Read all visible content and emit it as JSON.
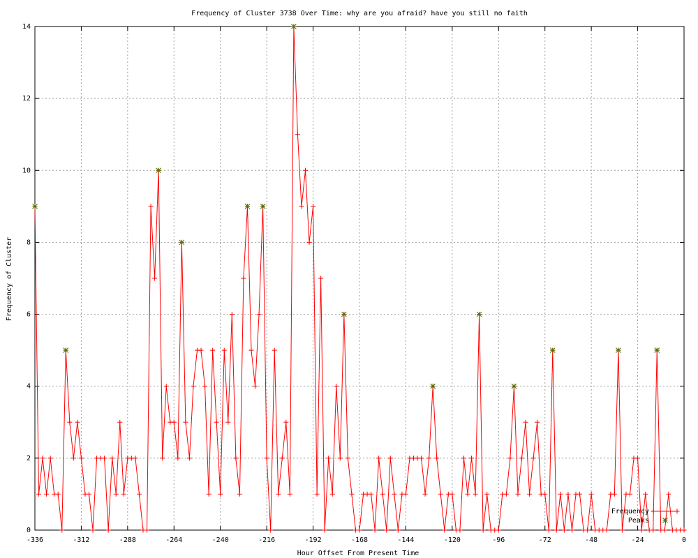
{
  "chart_data": {
    "type": "line",
    "title": "Frequency of Cluster 3738 Over Time: why are you afraid? have you still no faith",
    "x_label": "Hour Offset From Present Time",
    "y_label": "Frequency of Cluster",
    "x": [
      -336,
      -334,
      -332,
      -330,
      -328,
      -326,
      -324,
      -322,
      -320,
      -318,
      -316,
      -314,
      -312,
      -310,
      -308,
      -306,
      -304,
      -302,
      -300,
      -298,
      -296,
      -294,
      -292,
      -290,
      -288,
      -286,
      -284,
      -282,
      -280,
      -278,
      -276,
      -274,
      -272,
      -270,
      -268,
      -266,
      -264,
      -262,
      -260,
      -258,
      -256,
      -254,
      -252,
      -250,
      -248,
      -246,
      -244,
      -242,
      -240,
      -238,
      -236,
      -234,
      -232,
      -230,
      -228,
      -226,
      -224,
      -222,
      -220,
      -218,
      -216,
      -214,
      -212,
      -210,
      -208,
      -206,
      -204,
      -202,
      -200,
      -198,
      -196,
      -194,
      -192,
      -190,
      -188,
      -186,
      -184,
      -182,
      -180,
      -178,
      -176,
      -174,
      -172,
      -170,
      -168,
      -166,
      -164,
      -162,
      -160,
      -158,
      -156,
      -154,
      -152,
      -150,
      -148,
      -146,
      -144,
      -142,
      -140,
      -138,
      -136,
      -134,
      -132,
      -130,
      -128,
      -126,
      -124,
      -122,
      -120,
      -118,
      -116,
      -114,
      -112,
      -110,
      -108,
      -106,
      -104,
      -102,
      -100,
      -98,
      -96,
      -94,
      -92,
      -90,
      -88,
      -86,
      -84,
      -82,
      -80,
      -78,
      -76,
      -74,
      -72,
      -70,
      -68,
      -66,
      -64,
      -62,
      -60,
      -58,
      -56,
      -54,
      -52,
      -50,
      -48,
      -46,
      -44,
      -42,
      -40,
      -38,
      -36,
      -34,
      -32,
      -30,
      -28,
      -26,
      -24,
      -22,
      -20,
      -18,
      -16,
      -14,
      -12,
      -10,
      -8,
      -6,
      -4,
      -2,
      0
    ],
    "series": [
      {
        "name": "Frequency",
        "color": "#ff0000",
        "marker": "plus",
        "values": [
          9,
          1,
          2,
          1,
          2,
          1,
          1,
          0,
          5,
          3,
          2,
          3,
          2,
          1,
          1,
          0,
          2,
          2,
          2,
          0,
          2,
          1,
          3,
          1,
          2,
          2,
          2,
          1,
          0,
          0,
          9,
          7,
          10,
          2,
          4,
          3,
          3,
          2,
          8,
          3,
          2,
          4,
          5,
          5,
          4,
          1,
          5,
          3,
          1,
          5,
          3,
          6,
          2,
          1,
          7,
          9,
          5,
          4,
          6,
          9,
          2,
          0,
          5,
          1,
          2,
          3,
          1,
          14,
          11,
          9,
          10,
          8,
          9,
          1,
          7,
          0,
          2,
          1,
          4,
          2,
          6,
          2,
          1,
          0,
          0,
          1,
          1,
          1,
          0,
          2,
          1,
          0,
          2,
          1,
          0,
          1,
          1,
          2,
          2,
          2,
          2,
          1,
          2,
          4,
          2,
          1,
          0,
          1,
          1,
          0,
          0,
          2,
          1,
          2,
          1,
          6,
          0,
          1,
          0,
          0,
          0,
          1,
          1,
          2,
          4,
          1,
          2,
          3,
          1,
          2,
          3,
          1,
          1,
          0,
          5,
          0,
          1,
          0,
          1,
          0,
          1,
          1,
          0,
          0,
          1,
          0,
          0,
          0,
          0,
          1,
          1,
          5,
          0,
          1,
          1,
          2,
          2,
          0,
          1,
          0,
          0,
          5,
          0,
          0,
          1,
          0,
          0,
          0,
          0
        ]
      },
      {
        "name": "Peaks",
        "color": "#556b00",
        "marker": "star",
        "x": [
          -336,
          -320,
          -272,
          -260,
          -226,
          -218,
          -202,
          -176,
          -130,
          -106,
          -88,
          -68,
          -34,
          -14
        ],
        "values": [
          9,
          5,
          10,
          8,
          9,
          9,
          14,
          6,
          4,
          6,
          4,
          5,
          5,
          5
        ]
      }
    ],
    "xlim": [
      -336,
      0
    ],
    "xticks": [
      -336,
      -312,
      -288,
      -264,
      -240,
      -216,
      -192,
      -168,
      -144,
      -120,
      -96,
      -72,
      -48,
      -24,
      0
    ],
    "ylim": [
      0,
      14
    ],
    "yticks": [
      0,
      2,
      4,
      6,
      8,
      10,
      12,
      14
    ],
    "grid": true,
    "legend": "lower right"
  }
}
